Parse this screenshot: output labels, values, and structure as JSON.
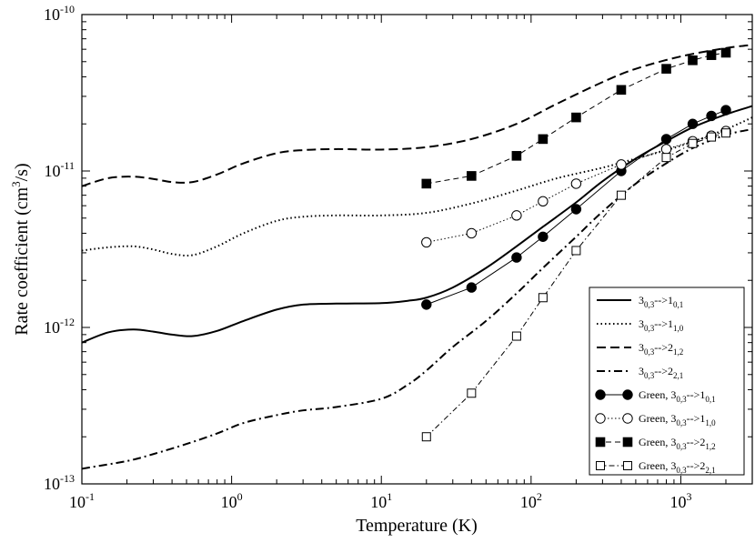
{
  "chart_data": {
    "type": "line",
    "title": "",
    "xlabel": "Temperature (K)",
    "ylabel_main": "Rate coefficient (cm",
    "ylabel_sup": "3",
    "ylabel_end": "/s)",
    "xscale": "log",
    "yscale": "log",
    "xlim": [
      0.1,
      3000
    ],
    "ylim": [
      1e-13,
      1e-10
    ],
    "grid": false,
    "legend_position": "bottom-right",
    "x_ticks": [
      {
        "value": 0.1,
        "base": "10",
        "exp": "-1"
      },
      {
        "value": 1,
        "base": "10",
        "exp": "0"
      },
      {
        "value": 10,
        "base": "10",
        "exp": "1"
      },
      {
        "value": 100,
        "base": "10",
        "exp": "2"
      },
      {
        "value": 1000,
        "base": "10",
        "exp": "3"
      }
    ],
    "y_ticks": [
      {
        "value": 1e-13,
        "base": "10",
        "exp": "-13"
      },
      {
        "value": 1e-12,
        "base": "10",
        "exp": "-12"
      },
      {
        "value": 1e-11,
        "base": "10",
        "exp": "-11"
      },
      {
        "value": 1e-10,
        "base": "10",
        "exp": "-10"
      }
    ],
    "series": [
      {
        "name": "3_{0,3}-->1_{0,1}",
        "legend": {
          "main": "3",
          "sub1": "0,3",
          "mid": "-->1",
          "sub2": "0,1"
        },
        "style": "solid",
        "marker": "none",
        "x": [
          0.1,
          0.15,
          0.22,
          0.3,
          0.4,
          0.55,
          0.8,
          1.2,
          2,
          3,
          5,
          10,
          15,
          20,
          30,
          50,
          80,
          120,
          200,
          300,
          500,
          800,
          1200,
          2000,
          3000
        ],
        "y": [
          8e-13,
          9.3e-13,
          9.7e-13,
          9.4e-13,
          9e-13,
          8.8e-13,
          9.5e-13,
          1.1e-12,
          1.3e-12,
          1.4e-12,
          1.42e-12,
          1.43e-12,
          1.48e-12,
          1.55e-12,
          1.8e-12,
          2.4e-12,
          3.3e-12,
          4.4e-12,
          6.3e-12,
          8.6e-12,
          1.2e-11,
          1.55e-11,
          1.9e-11,
          2.3e-11,
          2.6e-11
        ]
      },
      {
        "name": "3_{0,3}-->1_{1,0}",
        "legend": {
          "main": "3",
          "sub1": "0,3",
          "mid": "-->1",
          "sub2": "1,0"
        },
        "style": "dotted",
        "marker": "none",
        "x": [
          0.1,
          0.15,
          0.22,
          0.3,
          0.4,
          0.55,
          0.8,
          1.2,
          2,
          3,
          5,
          10,
          20,
          40,
          80,
          150,
          300,
          500,
          1000,
          2000,
          3000
        ],
        "y": [
          3.1e-12,
          3.25e-12,
          3.3e-12,
          3.15e-12,
          2.95e-12,
          2.9e-12,
          3.3e-12,
          4e-12,
          4.8e-12,
          5.1e-12,
          5.2e-12,
          5.2e-12,
          5.4e-12,
          6.2e-12,
          7.5e-12,
          9e-12,
          1.05e-11,
          1.2e-11,
          1.45e-11,
          1.85e-11,
          2.2e-11
        ]
      },
      {
        "name": "3_{0,3}-->2_{1,2}",
        "legend": {
          "main": "3",
          "sub1": "0,3",
          "mid": "-->2",
          "sub2": "1,2"
        },
        "style": "dashed",
        "marker": "none",
        "x": [
          0.1,
          0.15,
          0.22,
          0.3,
          0.4,
          0.55,
          0.8,
          1.2,
          2,
          3,
          5,
          10,
          20,
          40,
          80,
          150,
          300,
          500,
          1000,
          2000,
          3000
        ],
        "y": [
          8e-12,
          9e-12,
          9.2e-12,
          8.9e-12,
          8.5e-12,
          8.5e-12,
          9.5e-12,
          1.12e-11,
          1.3e-11,
          1.36e-11,
          1.38e-11,
          1.37e-11,
          1.42e-11,
          1.6e-11,
          2e-11,
          2.7e-11,
          3.7e-11,
          4.5e-11,
          5.4e-11,
          6.1e-11,
          6.4e-11
        ]
      },
      {
        "name": "3_{0,3}-->2_{2,1}",
        "legend": {
          "main": "3",
          "sub1": "0,3",
          "mid": "-->2",
          "sub2": "2,1"
        },
        "style": "dashdot",
        "marker": "none",
        "x": [
          0.1,
          0.2,
          0.3,
          0.5,
          0.8,
          1.2,
          2,
          3,
          5,
          10,
          15,
          20,
          30,
          50,
          80,
          120,
          200,
          300,
          500,
          800,
          1200,
          2000,
          3000
        ],
        "y": [
          1.25e-13,
          1.4e-13,
          1.55e-13,
          1.8e-13,
          2.1e-13,
          2.45e-13,
          2.75e-13,
          2.95e-13,
          3.1e-13,
          3.5e-13,
          4.3e-13,
          5.3e-13,
          7.5e-13,
          1.1e-12,
          1.65e-12,
          2.4e-12,
          3.8e-12,
          5.5e-12,
          8.3e-12,
          1.12e-11,
          1.4e-11,
          1.7e-11,
          1.85e-11
        ]
      },
      {
        "name": "Green, 3_{0,3}-->1_{0,1}",
        "legend": {
          "prefix": "Green, ",
          "main": "3",
          "sub1": "0,3",
          "mid": "-->1",
          "sub2": "0,1"
        },
        "style": "solid",
        "marker": "filled-circle",
        "x": [
          20,
          40,
          80,
          120,
          200,
          400,
          800,
          1200,
          1600,
          2000
        ],
        "y": [
          1.4e-12,
          1.8e-12,
          2.8e-12,
          3.8e-12,
          5.7e-12,
          1e-11,
          1.6e-11,
          2e-11,
          2.25e-11,
          2.45e-11
        ]
      },
      {
        "name": "Green, 3_{0,3}-->1_{1,0}",
        "legend": {
          "prefix": "Green, ",
          "main": "3",
          "sub1": "0,3",
          "mid": "-->1",
          "sub2": "1,0"
        },
        "style": "dotted",
        "marker": "open-circle",
        "x": [
          20,
          40,
          80,
          120,
          200,
          400,
          800,
          1200,
          1600,
          2000
        ],
        "y": [
          3.5e-12,
          4e-12,
          5.2e-12,
          6.4e-12,
          8.3e-12,
          1.1e-11,
          1.38e-11,
          1.55e-11,
          1.68e-11,
          1.8e-11
        ]
      },
      {
        "name": "Green, 3_{0,3}-->2_{1,2}",
        "legend": {
          "prefix": "Green, ",
          "main": "3",
          "sub1": "0,3",
          "mid": "-->2",
          "sub2": "1,2"
        },
        "style": "dashed",
        "marker": "filled-square",
        "x": [
          20,
          40,
          80,
          120,
          200,
          400,
          800,
          1200,
          1600,
          2000
        ],
        "y": [
          8.3e-12,
          9.3e-12,
          1.25e-11,
          1.6e-11,
          2.2e-11,
          3.3e-11,
          4.5e-11,
          5.1e-11,
          5.5e-11,
          5.7e-11
        ]
      },
      {
        "name": "Green, 3_{0,3}-->2_{2,1}",
        "legend": {
          "prefix": "Green, ",
          "main": "3",
          "sub1": "0,3",
          "mid": "-->2",
          "sub2": "2,1"
        },
        "style": "dashdot",
        "marker": "open-square",
        "x": [
          20,
          40,
          80,
          120,
          200,
          400,
          800,
          1200,
          1600,
          2000
        ],
        "y": [
          2e-13,
          3.8e-13,
          8.8e-13,
          1.55e-12,
          3.1e-12,
          7e-12,
          1.22e-11,
          1.5e-11,
          1.65e-11,
          1.75e-11
        ]
      }
    ]
  }
}
